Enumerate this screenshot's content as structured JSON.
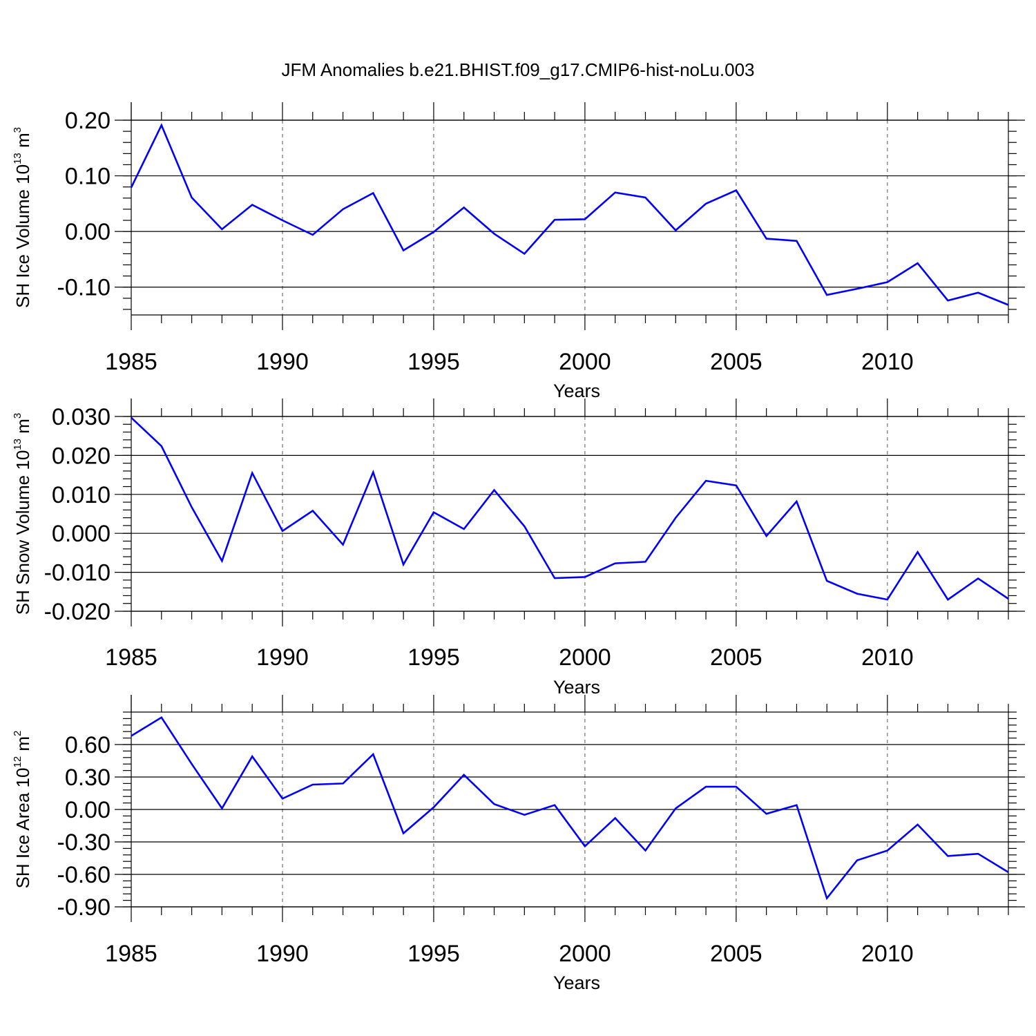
{
  "figure": {
    "title": "JFM Anomalies b.e21.BHIST.f09_g17.CMIP6-hist-noLu.003",
    "line_color": "#0000ff"
  },
  "chart_data": [
    {
      "type": "line",
      "ylabel": {
        "text": "SH Ice Volume 10",
        "sup1": "13",
        "mid": " m",
        "sup2": "3"
      },
      "xlabel": "Years",
      "xlim": [
        1985,
        2014
      ],
      "ylim": [
        -0.15,
        0.2
      ],
      "xticks": [
        1985,
        1990,
        1995,
        2000,
        2005,
        2010
      ],
      "xtick_labels": [
        "1985",
        "1990",
        "1995",
        "2000",
        "2005",
        "2010"
      ],
      "yticks": [
        0.2,
        0.1,
        0.0,
        -0.1
      ],
      "ytick_labels": [
        "0.20",
        "0.10",
        "0.00",
        "-0.10"
      ],
      "yminor_step": 0.02,
      "x": [
        1985,
        1986,
        1987,
        1988,
        1989,
        1990,
        1991,
        1992,
        1993,
        1994,
        1995,
        1996,
        1997,
        1998,
        1999,
        2000,
        2001,
        2002,
        2003,
        2004,
        2005,
        2006,
        2007,
        2008,
        2009,
        2010,
        2011,
        2012,
        2013,
        2014
      ],
      "series": [
        {
          "values": [
            0.079,
            0.191,
            0.061,
            0.004,
            0.048,
            0.02,
            -0.006,
            0.04,
            0.069,
            -0.034,
            -0.001,
            0.043,
            -0.004,
            -0.04,
            0.021,
            0.022,
            0.07,
            0.061,
            0.002,
            0.05,
            0.074,
            -0.013,
            -0.017,
            -0.114,
            -0.103,
            -0.091,
            -0.057,
            -0.124,
            -0.11,
            -0.132
          ]
        }
      ]
    },
    {
      "type": "line",
      "ylabel": {
        "text": "SH Snow Volume 10",
        "sup1": "13",
        "mid": " m",
        "sup2": "3"
      },
      "xlabel": "Years",
      "xlim": [
        1985,
        2014
      ],
      "ylim": [
        -0.02,
        0.03
      ],
      "xticks": [
        1985,
        1990,
        1995,
        2000,
        2005,
        2010
      ],
      "xtick_labels": [
        "1985",
        "1990",
        "1995",
        "2000",
        "2005",
        "2010"
      ],
      "yticks": [
        0.03,
        0.02,
        0.01,
        0.0,
        -0.01,
        -0.02
      ],
      "ytick_labels": [
        "0.030",
        "0.020",
        "0.010",
        "0.000",
        "-0.010",
        "-0.020"
      ],
      "yminor_step": 0.002,
      "x": [
        1985,
        1986,
        1987,
        1988,
        1989,
        1990,
        1991,
        1992,
        1993,
        1994,
        1995,
        1996,
        1997,
        1998,
        1999,
        2000,
        2001,
        2002,
        2003,
        2004,
        2005,
        2006,
        2007,
        2008,
        2009,
        2010,
        2011,
        2012,
        2013,
        2014
      ],
      "series": [
        {
          "values": [
            0.0297,
            0.0224,
            0.0067,
            -0.0071,
            0.0155,
            0.0006,
            0.0058,
            -0.0029,
            0.0157,
            -0.008,
            0.0054,
            0.0011,
            0.0111,
            0.0018,
            -0.0115,
            -0.0112,
            -0.0077,
            -0.0073,
            0.004,
            0.0135,
            0.0123,
            -0.0007,
            0.0082,
            -0.0122,
            -0.0155,
            -0.017,
            -0.0048,
            -0.017,
            -0.0116,
            -0.0168
          ]
        }
      ]
    },
    {
      "type": "line",
      "ylabel": {
        "text": "SH Ice Area 10",
        "sup1": "12",
        "mid": " m",
        "sup2": "2"
      },
      "xlabel": "Years",
      "xlim": [
        1985,
        2014
      ],
      "ylim": [
        -0.9,
        0.9
      ],
      "xticks": [
        1985,
        1990,
        1995,
        2000,
        2005,
        2010
      ],
      "xtick_labels": [
        "1985",
        "1990",
        "1995",
        "2000",
        "2005",
        "2010"
      ],
      "yticks": [
        0.6,
        0.3,
        0.0,
        -0.3,
        -0.6,
        -0.9
      ],
      "ytick_labels": [
        "0.60",
        "0.30",
        "0.00",
        "-0.30",
        "-0.60",
        "-0.90"
      ],
      "yminor_step": 0.06,
      "x": [
        1985,
        1986,
        1987,
        1988,
        1989,
        1990,
        1991,
        1992,
        1993,
        1994,
        1995,
        1996,
        1997,
        1998,
        1999,
        2000,
        2001,
        2002,
        2003,
        2004,
        2005,
        2006,
        2007,
        2008,
        2009,
        2010,
        2011,
        2012,
        2013,
        2014
      ],
      "series": [
        {
          "values": [
            0.68,
            0.85,
            0.42,
            0.01,
            0.49,
            0.1,
            0.23,
            0.24,
            0.51,
            -0.22,
            0.02,
            0.32,
            0.05,
            -0.05,
            0.04,
            -0.34,
            -0.08,
            -0.38,
            0.01,
            0.21,
            0.21,
            -0.04,
            0.04,
            -0.82,
            -0.47,
            -0.38,
            -0.14,
            -0.43,
            -0.41,
            -0.58
          ]
        }
      ]
    }
  ]
}
